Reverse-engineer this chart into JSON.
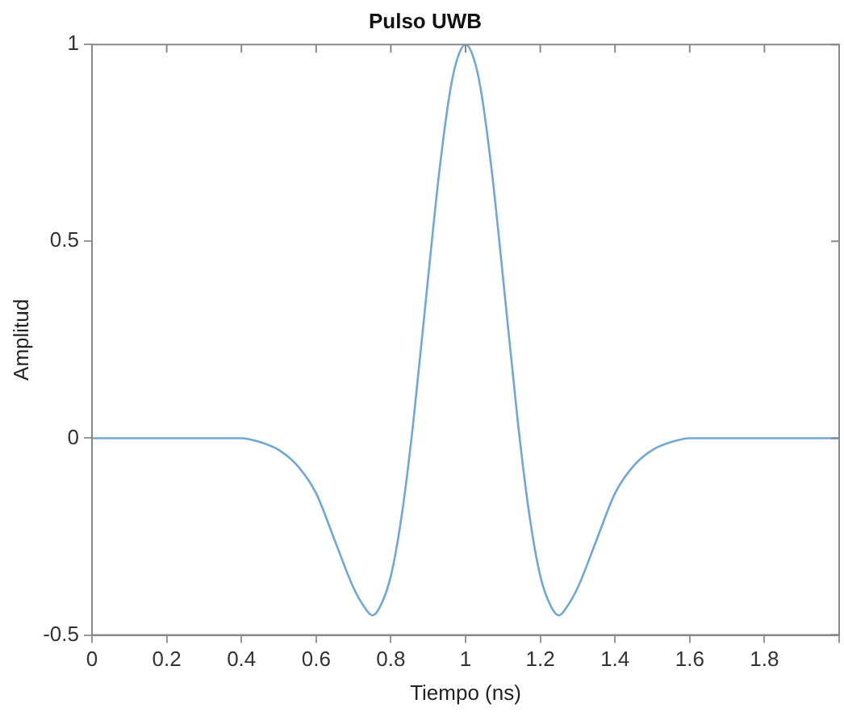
{
  "chart_data": {
    "type": "line",
    "title": "Pulso UWB",
    "xlabel": "Tiempo (ns)",
    "ylabel": "Amplitud",
    "xlim": [
      0,
      2
    ],
    "ylim": [
      -0.5,
      1
    ],
    "xticks": [
      0,
      0.2,
      0.4,
      0.6,
      0.8,
      1,
      1.2,
      1.4,
      1.6,
      1.8,
      {
        "value": 2,
        "label": null
      }
    ],
    "yticks": [
      -0.5,
      0,
      0.5,
      1
    ],
    "grid": false,
    "legend": false,
    "marker": "none",
    "line_style": "solid",
    "series": [
      {
        "color": "#6fa8d6",
        "x": [
          0,
          0.2,
          0.4,
          0.45,
          0.5,
          0.55,
          0.6,
          0.65,
          0.7,
          0.73,
          0.75,
          0.77,
          0.8,
          0.83,
          0.86,
          0.9,
          0.93,
          0.96,
          0.98,
          1,
          1.02,
          1.04,
          1.07,
          1.1,
          1.14,
          1.17,
          1.2,
          1.23,
          1.25,
          1.27,
          1.3,
          1.35,
          1.4,
          1.45,
          1.5,
          1.55,
          1.6,
          1.8,
          2
        ],
        "values": [
          0,
          0,
          0,
          -0.01,
          -0.03,
          -0.07,
          -0.14,
          -0.26,
          -0.38,
          -0.43,
          -0.45,
          -0.43,
          -0.35,
          -0.19,
          0.04,
          0.41,
          0.68,
          0.89,
          0.97,
          1,
          0.97,
          0.89,
          0.68,
          0.41,
          0.04,
          -0.19,
          -0.35,
          -0.43,
          -0.45,
          -0.43,
          -0.38,
          -0.26,
          -0.14,
          -0.07,
          -0.03,
          -0.01,
          0,
          0,
          0
        ]
      }
    ]
  }
}
